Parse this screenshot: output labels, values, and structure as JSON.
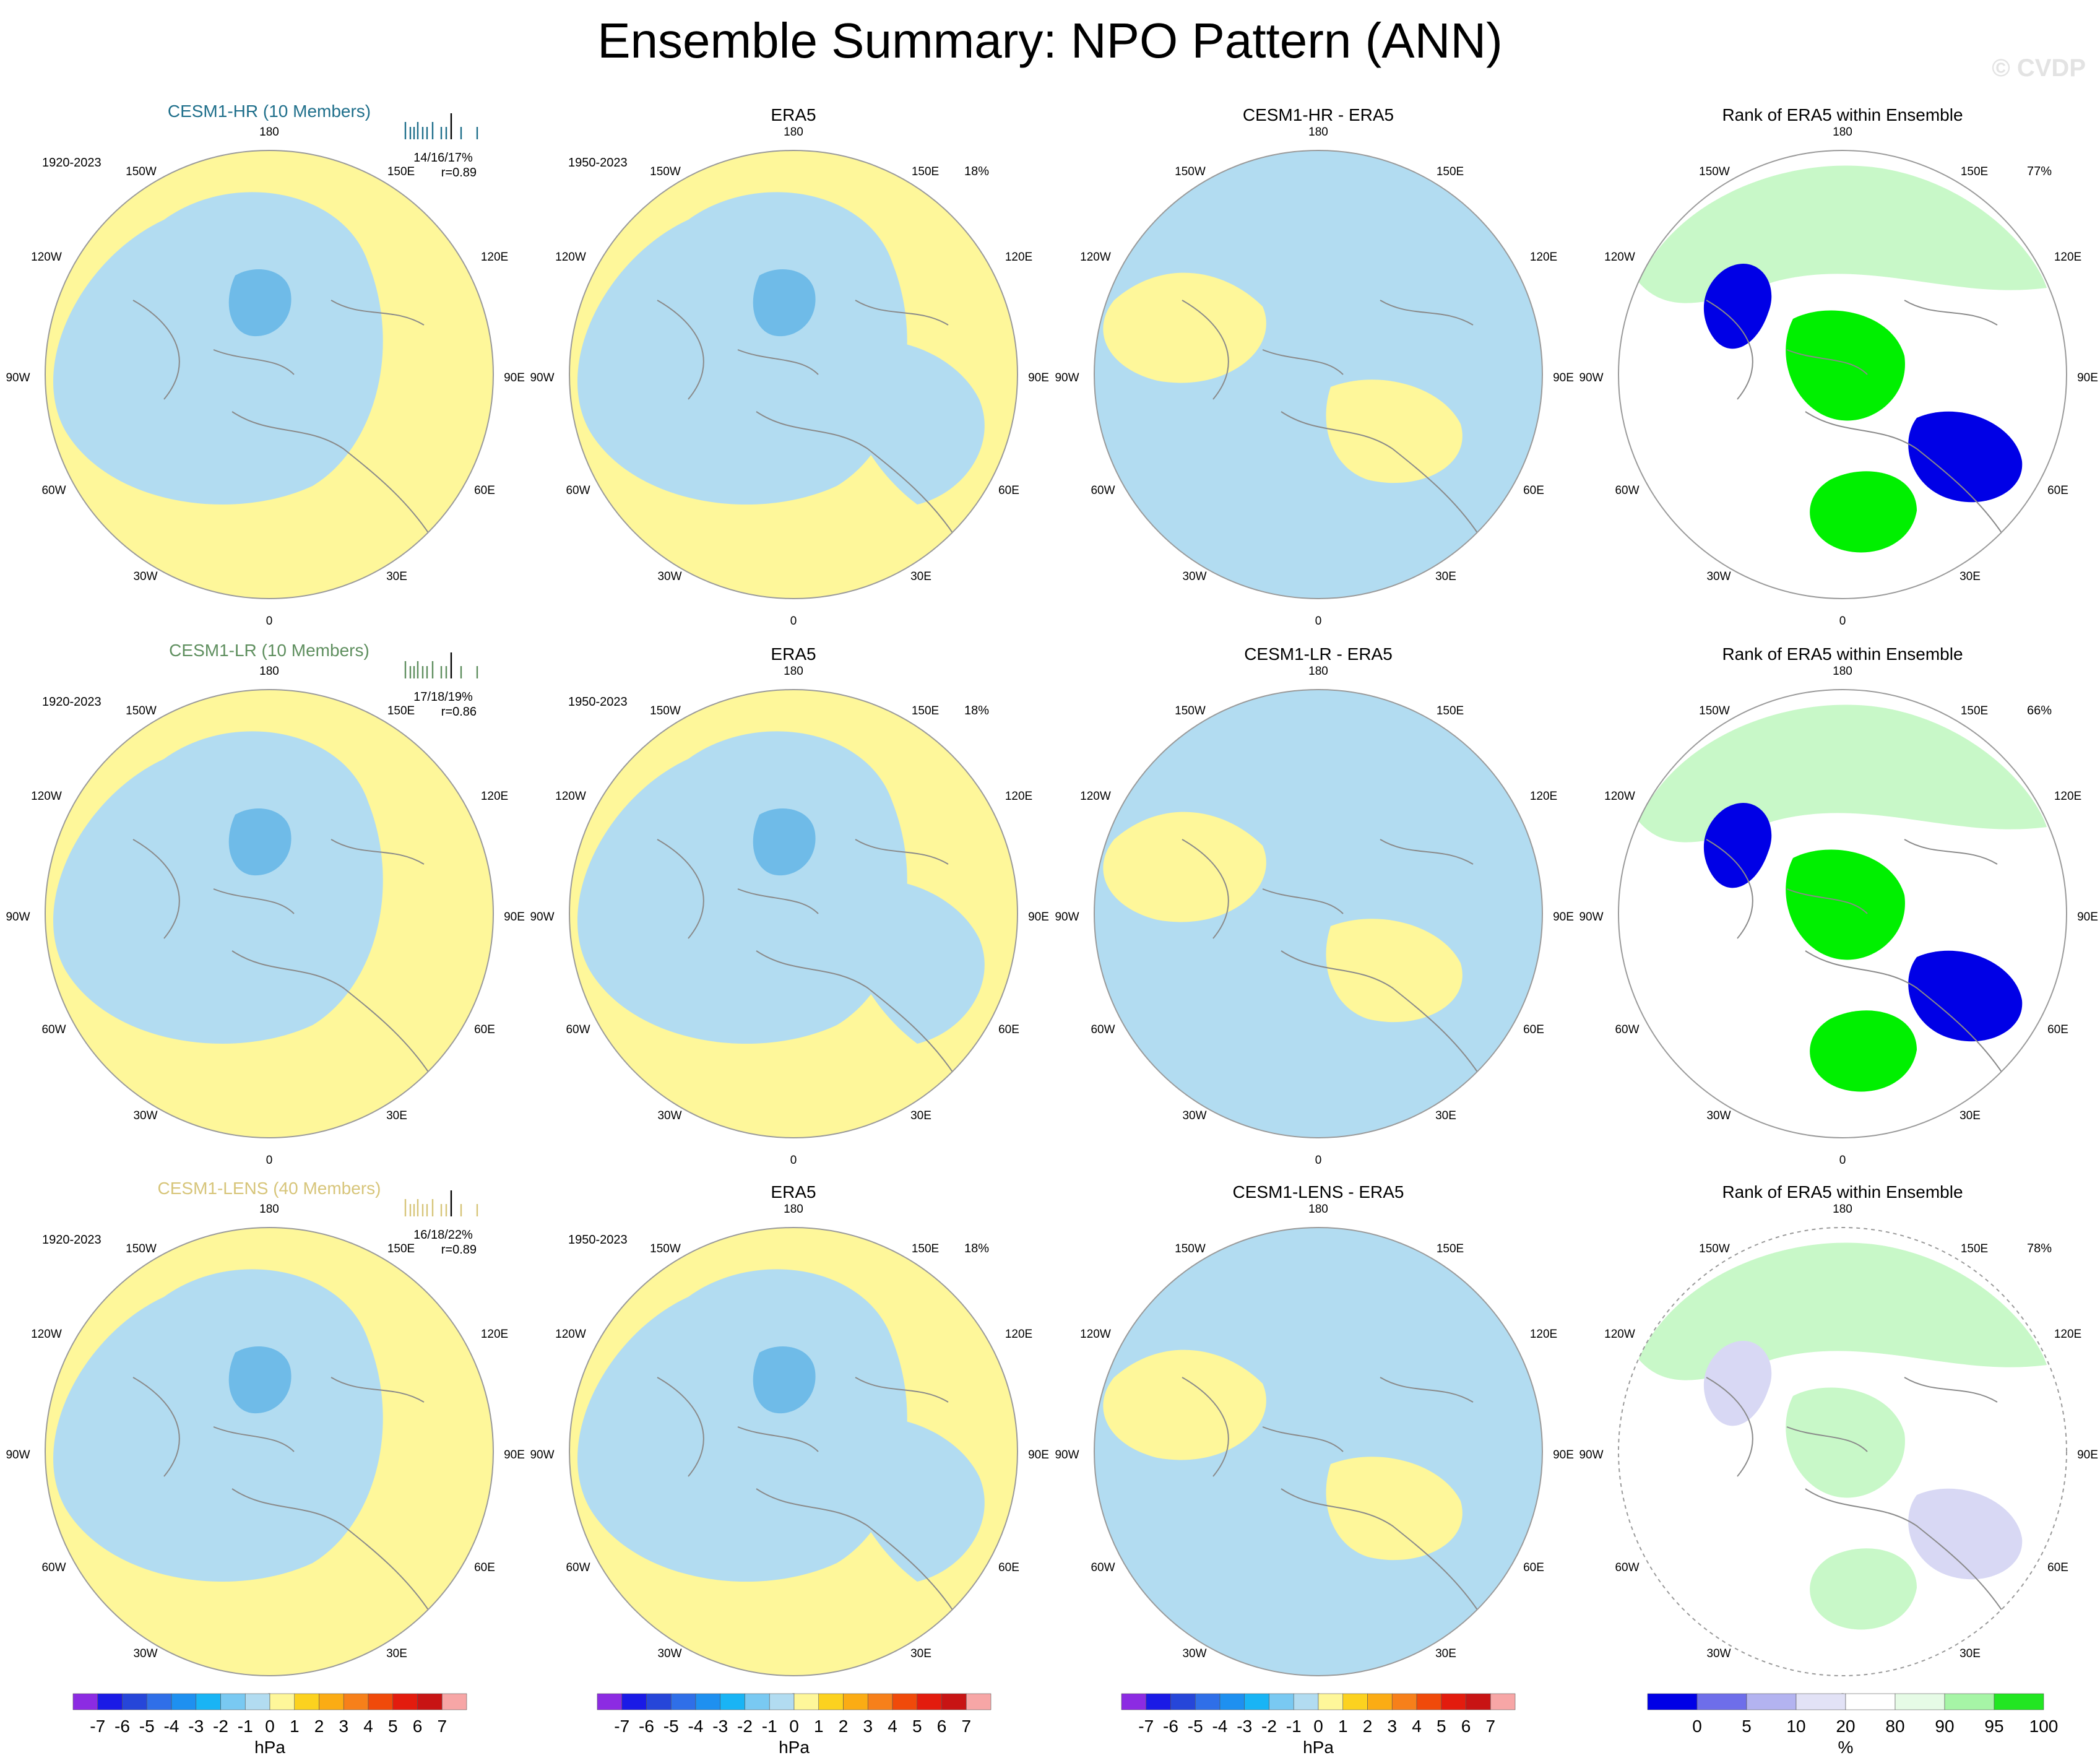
{
  "title": "Ensemble Summary: NPO Pattern (ANN)",
  "watermark": "© CVDP",
  "colors": {
    "hr_label": "#1f6f8b",
    "lr_label": "#5f8f5f",
    "lens_label": "#d7c57a",
    "neg_fill": "#b2dcf1",
    "pos_fill": "#fef79a",
    "neg_strong": "#6fbbe8",
    "rank_green": "#00f000",
    "rank_light_green": "#c8f8c8",
    "rank_blue": "#0000e6",
    "rank_light_blue": "#d8d8f4"
  },
  "chart_data": {
    "type": "heatmap",
    "projection": "north-polar-stereographic",
    "lon_labels": [
      "180",
      "150W",
      "150E",
      "120W",
      "120E",
      "90W",
      "90E",
      "60W",
      "60E",
      "30W",
      "30E",
      "0"
    ],
    "rows": [
      {
        "model_label": "CESM1-HR (10 Members)",
        "model_label_color": "hr_label",
        "model_period": "1920-2023",
        "model_stats": "14/16/17%",
        "model_r": "r=0.89",
        "obs_title": "ERA5",
        "obs_period": "1950-2023",
        "obs_pct": "18%",
        "diff_title": "CESM1-HR - ERA5",
        "rank_title": "Rank of ERA5 within Ensemble",
        "rank_pct": "77%"
      },
      {
        "model_label": "CESM1-LR (10 Members)",
        "model_label_color": "lr_label",
        "model_period": "1920-2023",
        "model_stats": "17/18/19%",
        "model_r": "r=0.86",
        "obs_title": "ERA5",
        "obs_period": "1950-2023",
        "obs_pct": "18%",
        "diff_title": "CESM1-LR - ERA5",
        "rank_title": "Rank of ERA5 within Ensemble",
        "rank_pct": "66%"
      },
      {
        "model_label": "CESM1-LENS (40 Members)",
        "model_label_color": "lens_label",
        "model_period": "1920-2023",
        "model_stats": "16/18/22%",
        "model_r": "r=0.89",
        "obs_title": "ERA5",
        "obs_period": "1950-2023",
        "obs_pct": "18%",
        "diff_title": "CESM1-LENS - ERA5",
        "rank_title": "Rank of ERA5 within Ensemble",
        "rank_pct": "78%"
      }
    ],
    "pressure_colorbar": {
      "unit": "hPa",
      "tick_labels": [
        "-7",
        "-6",
        "-5",
        "-4",
        "-3",
        "-2",
        "-1",
        "0",
        "1",
        "2",
        "3",
        "4",
        "5",
        "6",
        "7"
      ],
      "colors": [
        "#8c2be2",
        "#1a1ae6",
        "#2646d9",
        "#2f6fe8",
        "#1e90f0",
        "#19b4f5",
        "#79c9f2",
        "#b2dcf1",
        "#fef79a",
        "#fcd21f",
        "#fbac14",
        "#f7801a",
        "#f04a0a",
        "#e31c0e",
        "#c81414",
        "#f7a6a6"
      ]
    },
    "rank_colorbar": {
      "unit": "%",
      "tick_labels": [
        "0",
        "5",
        "10",
        "20",
        "80",
        "90",
        "95",
        "100"
      ],
      "colors": [
        "#0000e6",
        "#6e6eea",
        "#b3b3f0",
        "#e2e2f6",
        "#ffffff",
        "#e6fbe6",
        "#a6f5a6",
        "#22e622"
      ]
    }
  }
}
